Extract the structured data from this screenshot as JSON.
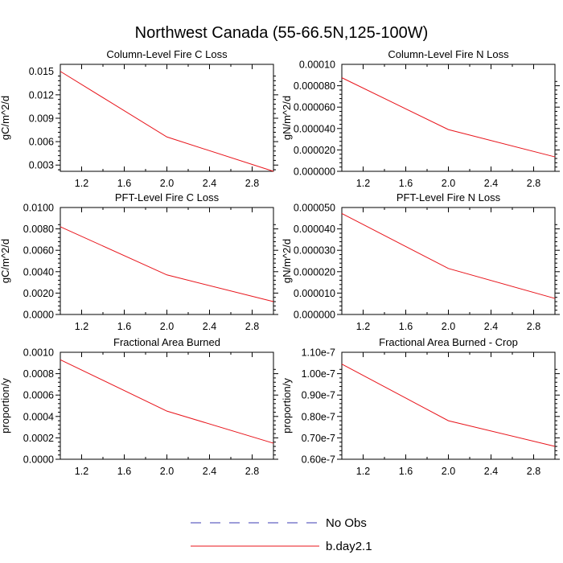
{
  "figure": {
    "title": "Northwest Canada (55-66.5N,125-100W)"
  },
  "legend": {
    "items": [
      {
        "label": "No Obs",
        "color": "#3b3bb3",
        "dashed": true
      },
      {
        "label": "b.day2.1",
        "color": "#e8141b",
        "dashed": false
      }
    ]
  },
  "chart_data": [
    {
      "type": "line",
      "title": "Column-Level Fire C Loss",
      "xlabel": "",
      "ylabel": "gC/m^2/d",
      "xlim": [
        1.0,
        3.0
      ],
      "ylim": [
        0.0022,
        0.0159
      ],
      "xticks": [
        "1.2",
        "1.6",
        "2.0",
        "2.4",
        "2.8"
      ],
      "xtick_values": [
        1.2,
        1.6,
        2.0,
        2.4,
        2.8
      ],
      "yticks": [
        "0.003",
        "0.006",
        "0.009",
        "0.012",
        "0.015"
      ],
      "ytick_values": [
        0.003,
        0.006,
        0.009,
        0.012,
        0.015
      ],
      "series": [
        {
          "name": "b.day2.1",
          "x": [
            1,
            2,
            3
          ],
          "values": [
            0.015,
            0.0066,
            0.0022
          ]
        }
      ]
    },
    {
      "type": "line",
      "title": "Column-Level Fire N Loss",
      "xlabel": "",
      "ylabel": "gN/m^2/d",
      "xlim": [
        1.0,
        3.0
      ],
      "ylim": [
        0.0,
        0.0001
      ],
      "xticks": [
        "1.2",
        "1.6",
        "2.0",
        "2.4",
        "2.8"
      ],
      "xtick_values": [
        1.2,
        1.6,
        2.0,
        2.4,
        2.8
      ],
      "yticks": [
        "0.000000",
        "0.000020",
        "0.000040",
        "0.000060",
        "0.000080",
        "0.00010"
      ],
      "ytick_values": [
        0.0,
        2e-05,
        4e-05,
        6e-05,
        8e-05,
        0.0001
      ],
      "series": [
        {
          "name": "b.day2.1",
          "x": [
            1,
            2,
            3
          ],
          "values": [
            8.75e-05,
            3.9e-05,
            1.35e-05
          ]
        }
      ]
    },
    {
      "type": "line",
      "title": "PFT-Level Fire C Loss",
      "xlabel": "",
      "ylabel": "gC/m^2/d",
      "xlim": [
        1.0,
        3.0
      ],
      "ylim": [
        0.0,
        0.01
      ],
      "xticks": [
        "1.2",
        "1.6",
        "2.0",
        "2.4",
        "2.8"
      ],
      "xtick_values": [
        1.2,
        1.6,
        2.0,
        2.4,
        2.8
      ],
      "yticks": [
        "0.0000",
        "0.0020",
        "0.0040",
        "0.0060",
        "0.0080",
        "0.0100"
      ],
      "ytick_values": [
        0.0,
        0.002,
        0.004,
        0.006,
        0.008,
        0.01
      ],
      "series": [
        {
          "name": "b.day2.1",
          "x": [
            1,
            2,
            3
          ],
          "values": [
            0.0082,
            0.0037,
            0.0012
          ]
        }
      ]
    },
    {
      "type": "line",
      "title": "PFT-Level Fire N Loss",
      "xlabel": "",
      "ylabel": "gN/m^2/d",
      "xlim": [
        1.0,
        3.0
      ],
      "ylim": [
        0.0,
        5e-05
      ],
      "xticks": [
        "1.2",
        "1.6",
        "2.0",
        "2.4",
        "2.8"
      ],
      "xtick_values": [
        1.2,
        1.6,
        2.0,
        2.4,
        2.8
      ],
      "yticks": [
        "0.000000",
        "0.000010",
        "0.000020",
        "0.000030",
        "0.000040",
        "0.000050"
      ],
      "ytick_values": [
        0.0,
        1e-05,
        2e-05,
        3e-05,
        4e-05,
        5e-05
      ],
      "series": [
        {
          "name": "b.day2.1",
          "x": [
            1,
            2,
            3
          ],
          "values": [
            4.72e-05,
            2.15e-05,
            7.5e-06
          ]
        }
      ]
    },
    {
      "type": "line",
      "title": "Fractional Area Burned",
      "xlabel": "",
      "ylabel": "proportion/y",
      "xlim": [
        1.0,
        3.0
      ],
      "ylim": [
        0.0,
        0.001
      ],
      "xticks": [
        "1.2",
        "1.6",
        "2.0",
        "2.4",
        "2.8"
      ],
      "xtick_values": [
        1.2,
        1.6,
        2.0,
        2.4,
        2.8
      ],
      "yticks": [
        "0.0000",
        "0.0002",
        "0.0004",
        "0.0006",
        "0.0008",
        "0.0010"
      ],
      "ytick_values": [
        0.0,
        0.0002,
        0.0004,
        0.0006,
        0.0008,
        0.001
      ],
      "series": [
        {
          "name": "b.day2.1",
          "x": [
            1,
            2,
            3
          ],
          "values": [
            0.00093,
            0.00045,
            0.00015
          ]
        }
      ]
    },
    {
      "type": "line",
      "title": "Fractional Area Burned - Crop",
      "xlabel": "",
      "ylabel": "proportion/y",
      "xlim": [
        1.0,
        3.0
      ],
      "ylim": [
        6e-08,
        1.1e-07
      ],
      "xticks": [
        "1.2",
        "1.6",
        "2.0",
        "2.4",
        "2.8"
      ],
      "xtick_values": [
        1.2,
        1.6,
        2.0,
        2.4,
        2.8
      ],
      "yticks": [
        "0.60e-7",
        "0.70e-7",
        "0.80e-7",
        "0.90e-7",
        "1.00e-7",
        "1.10e-7"
      ],
      "ytick_values": [
        6e-08,
        7e-08,
        8e-08,
        9e-08,
        1e-07,
        1.1e-07
      ],
      "series": [
        {
          "name": "b.day2.1",
          "x": [
            1,
            2,
            3
          ],
          "values": [
            1.045e-07,
            7.8e-08,
            6.6e-08
          ]
        }
      ]
    }
  ]
}
